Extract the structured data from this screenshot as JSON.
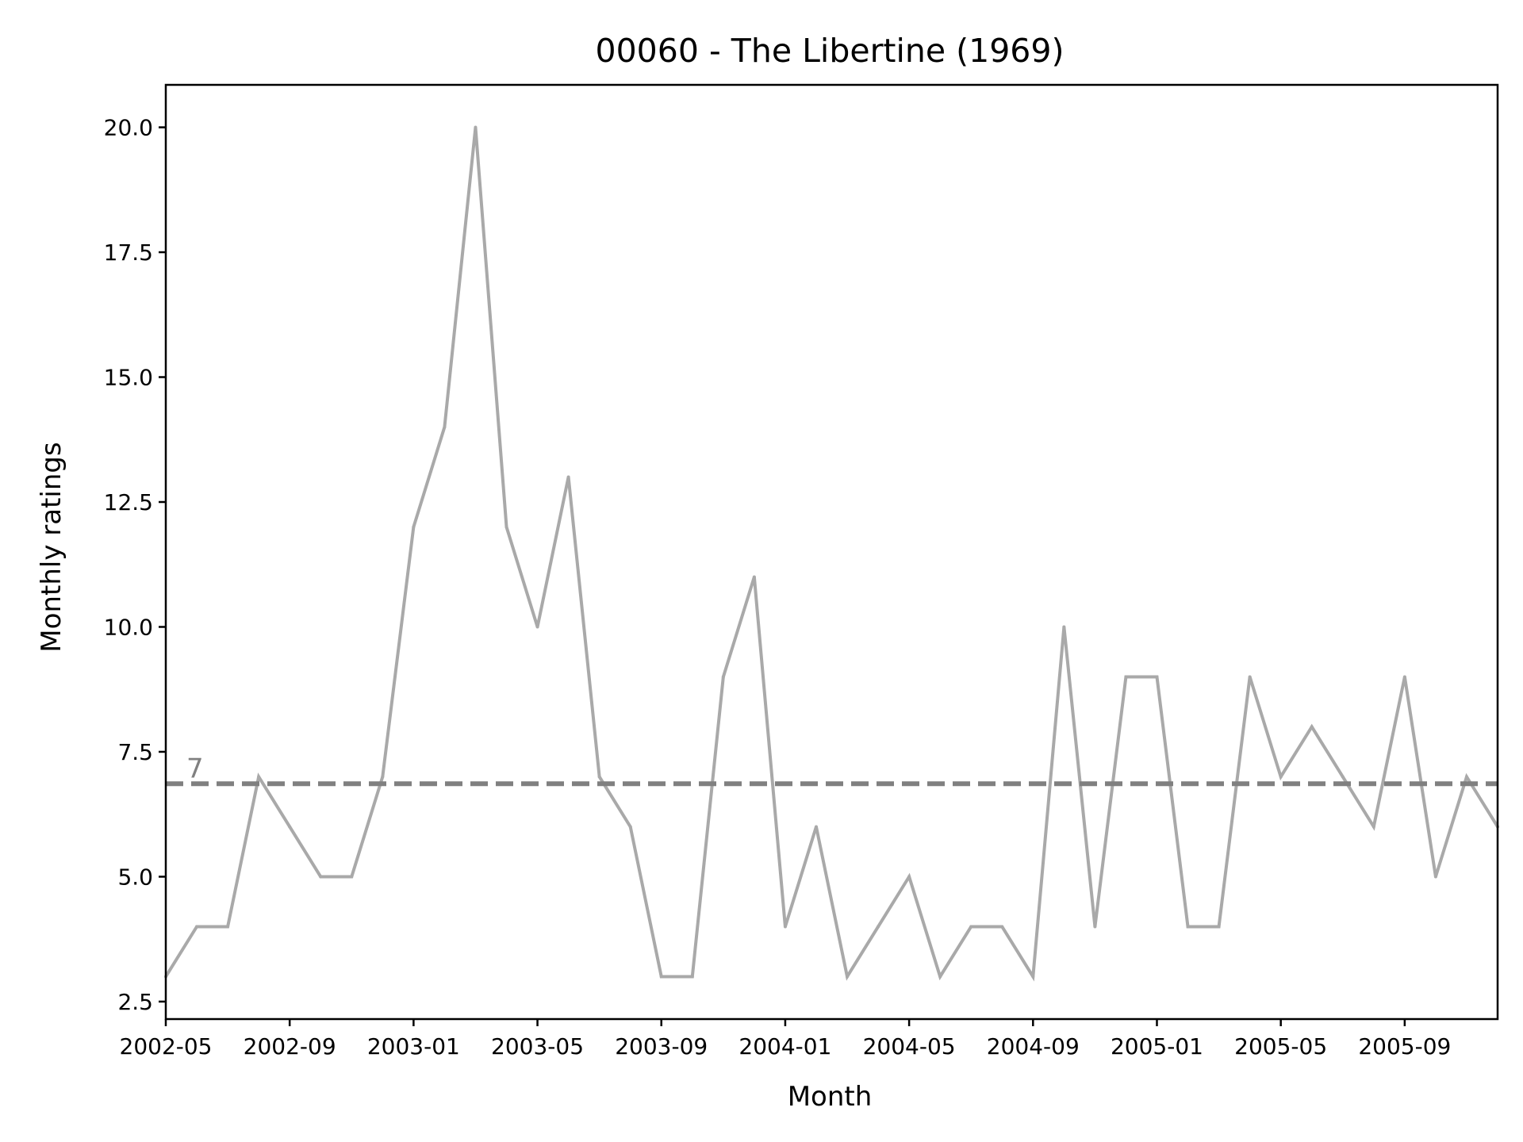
{
  "chart_data": {
    "type": "line",
    "title": "00060 - The Libertine (1969)",
    "xlabel": "Month",
    "ylabel": "Monthly ratings",
    "x": [
      "2002-05",
      "2002-06",
      "2002-07",
      "2002-08",
      "2002-09",
      "2002-10",
      "2002-11",
      "2002-12",
      "2003-01",
      "2003-02",
      "2003-03",
      "2003-04",
      "2003-05",
      "2003-06",
      "2003-07",
      "2003-08",
      "2003-09",
      "2003-10",
      "2003-11",
      "2003-12",
      "2004-01",
      "2004-02",
      "2004-03",
      "2004-04",
      "2004-05",
      "2004-06",
      "2004-07",
      "2004-08",
      "2004-09",
      "2004-10",
      "2004-11",
      "2004-12",
      "2005-01",
      "2005-02",
      "2005-03",
      "2005-04",
      "2005-05",
      "2005-06",
      "2005-07",
      "2005-08",
      "2005-09",
      "2005-10",
      "2005-11",
      "2005-12"
    ],
    "series": [
      {
        "values": [
          3,
          4,
          4,
          7,
          6,
          5,
          5,
          7,
          12,
          14,
          20,
          12,
          10,
          13,
          7,
          6,
          3,
          3,
          9,
          11,
          4,
          6,
          3,
          4,
          5,
          3,
          4,
          4,
          3,
          10,
          4,
          9,
          9,
          4,
          4,
          9,
          7,
          8,
          7,
          6,
          9,
          5,
          7,
          6
        ]
      }
    ],
    "reference_line": {
      "value": 6.86,
      "label": "7",
      "style": "dashed"
    },
    "x_ticks": [
      "2002-05",
      "2002-09",
      "2003-01",
      "2003-05",
      "2003-09",
      "2004-01",
      "2004-05",
      "2004-09",
      "2005-01",
      "2005-05",
      "2005-09"
    ],
    "y_ticks": [
      "2.5",
      "5.0",
      "7.5",
      "10.0",
      "12.5",
      "15.0",
      "17.5",
      "20.0"
    ],
    "ylim": [
      2.15,
      20.85
    ],
    "xlim": [
      "2002-05",
      "2005-12"
    ],
    "grid": false,
    "colors": {
      "line": "#a9a9a9",
      "reference": "#808080",
      "axes": "#000000"
    }
  }
}
